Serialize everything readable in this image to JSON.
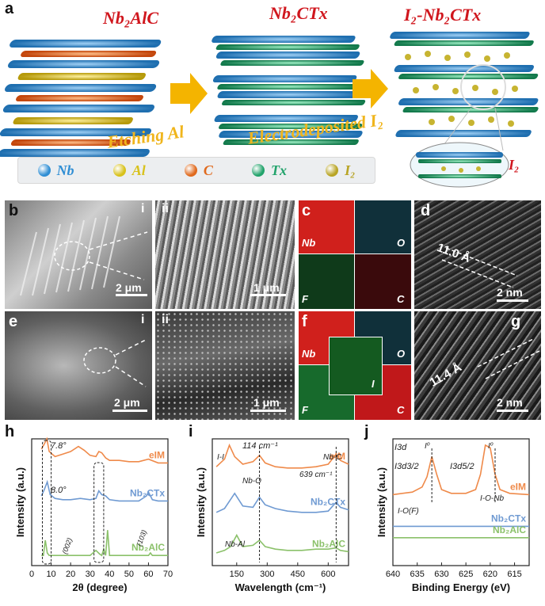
{
  "panel_a": {
    "label": "a",
    "title1": "Nb₂AlC",
    "title2": "Nb₂CTx",
    "title3": "I₂-Nb₂CTx",
    "step1": "Etching Al",
    "step2": "Electrodeposited I₂",
    "inset_label": "I₂",
    "legend": [
      {
        "name": "Nb",
        "color": "#2f8ed4"
      },
      {
        "name": "Al",
        "color": "#d8c21c"
      },
      {
        "name": "C",
        "color": "#e06a1e"
      },
      {
        "name": "Tx",
        "color": "#22a36b"
      },
      {
        "name": "I₂",
        "color": "#b8a424"
      }
    ]
  },
  "panel_b": {
    "label": "b",
    "sub1": "i",
    "sub2": "ii",
    "scale1": "2 μm",
    "scale2": "1 μm"
  },
  "panel_c": {
    "label": "c",
    "maps": [
      "Nb",
      "O",
      "F",
      "C"
    ]
  },
  "panel_d": {
    "label": "d",
    "spacing": "11.0 Å",
    "scale": "2 nm"
  },
  "panel_e": {
    "label": "e",
    "sub1": "i",
    "sub2": "ii",
    "scale1": "2 μm",
    "scale2": "1 μm"
  },
  "panel_f": {
    "label": "f",
    "maps": [
      "Nb",
      "O",
      "F",
      "C"
    ],
    "center": "I"
  },
  "panel_g": {
    "label": "g",
    "spacing": "11.4 Å",
    "scale": "2 nm"
  },
  "chart_data": [
    {
      "panel": "h",
      "type": "line",
      "xlabel": "2θ (degree)",
      "ylabel": "Intensity (a.u.)",
      "xlim": [
        0,
        70
      ],
      "xticks": [
        0,
        10,
        20,
        30,
        40,
        50,
        60,
        70
      ],
      "annotations": [
        "7.8°",
        "8.0°",
        "(002)",
        "(103)"
      ],
      "series": [
        {
          "name": "eIM",
          "color": "#ef8a4a",
          "x": [
            5,
            6.5,
            7.8,
            9,
            12,
            16,
            20,
            24,
            27,
            30,
            33,
            34.5,
            36,
            38,
            40,
            45,
            50,
            55,
            60,
            65,
            70
          ],
          "y": [
            0.92,
            0.96,
            1.0,
            0.9,
            0.86,
            0.88,
            0.9,
            0.94,
            0.91,
            0.87,
            0.86,
            0.9,
            0.89,
            0.85,
            0.83,
            0.83,
            0.82,
            0.82,
            0.84,
            0.81,
            0.81
          ]
        },
        {
          "name": "Nb₂CTx",
          "color": "#6f9ad2",
          "x": [
            5,
            6.5,
            8.0,
            9.5,
            12,
            16,
            20,
            25,
            30,
            33,
            34.5,
            36,
            38,
            40,
            45,
            50,
            55,
            59,
            60,
            62,
            65,
            70
          ],
          "y": [
            0.55,
            0.6,
            0.66,
            0.56,
            0.53,
            0.52,
            0.52,
            0.53,
            0.52,
            0.53,
            0.59,
            0.56,
            0.55,
            0.52,
            0.51,
            0.51,
            0.51,
            0.55,
            0.58,
            0.52,
            0.51,
            0.51
          ]
        },
        {
          "name": "Nb₂AlC",
          "color": "#8bc16a",
          "x": [
            5,
            6,
            7,
            8,
            9,
            12,
            20,
            30,
            33,
            35,
            36,
            37,
            38,
            39,
            40,
            45,
            50,
            55,
            60,
            61,
            62,
            65,
            70
          ],
          "y": [
            0.08,
            0.08,
            0.2,
            0.1,
            0.08,
            0.08,
            0.08,
            0.08,
            0.12,
            0.09,
            0.08,
            0.13,
            0.08,
            0.28,
            0.08,
            0.08,
            0.08,
            0.08,
            0.08,
            0.1,
            0.08,
            0.08,
            0.08
          ]
        }
      ]
    },
    {
      "panel": "i",
      "type": "line",
      "xlabel": "Wavelength (cm⁻¹)",
      "ylabel": "Intensity (a.u.)",
      "xlim": [
        30,
        700
      ],
      "xticks": [
        150,
        300,
        450,
        600
      ],
      "annotations": [
        "114 cm⁻¹",
        "I-I",
        "Nb-O",
        "Nb-C",
        "639 cm⁻¹",
        "Nb-Al"
      ],
      "series": [
        {
          "name": "eIM",
          "color": "#ef8a4a",
          "x": [
            50,
            90,
            114,
            140,
            180,
            230,
            262,
            290,
            340,
            400,
            470,
            540,
            600,
            639,
            660,
            700
          ],
          "y": [
            0.78,
            0.84,
            0.95,
            0.86,
            0.8,
            0.82,
            0.87,
            0.81,
            0.78,
            0.77,
            0.77,
            0.78,
            0.8,
            0.88,
            0.83,
            0.8
          ]
        },
        {
          "name": "Nb₂CTx",
          "color": "#6f9ad2",
          "x": [
            50,
            90,
            140,
            180,
            230,
            262,
            290,
            340,
            400,
            470,
            540,
            600,
            639,
            660,
            700
          ],
          "y": [
            0.42,
            0.45,
            0.57,
            0.47,
            0.46,
            0.54,
            0.48,
            0.45,
            0.43,
            0.42,
            0.42,
            0.43,
            0.5,
            0.46,
            0.44
          ]
        },
        {
          "name": "Nb₂AlC",
          "color": "#8bc16a",
          "x": [
            50,
            90,
            120,
            150,
            180,
            230,
            262,
            290,
            340,
            400,
            470,
            540,
            600,
            639,
            660,
            700
          ],
          "y": [
            0.1,
            0.12,
            0.15,
            0.24,
            0.15,
            0.16,
            0.2,
            0.15,
            0.13,
            0.12,
            0.12,
            0.13,
            0.13,
            0.14,
            0.12,
            0.11
          ]
        }
      ]
    },
    {
      "panel": "j",
      "type": "line",
      "xlabel": "Binding Energy (eV)",
      "ylabel": "Intensity (a.u.)",
      "xlim": [
        640,
        612
      ],
      "xticks": [
        640,
        635,
        630,
        625,
        620,
        615
      ],
      "annotations": [
        "I3d",
        "I⁰",
        "I3d3/2",
        "I3d5/2",
        "I⁰",
        "I-O(F)",
        "I-O-Nb"
      ],
      "series": [
        {
          "name": "eIM",
          "color": "#ef8a4a",
          "x": [
            640,
            636,
            634,
            633,
            632,
            631,
            630,
            628,
            625,
            623,
            622,
            621,
            620,
            619,
            618,
            616,
            612
          ],
          "y": [
            0.56,
            0.58,
            0.62,
            0.7,
            0.86,
            0.72,
            0.6,
            0.57,
            0.57,
            0.6,
            0.72,
            0.95,
            0.93,
            0.72,
            0.6,
            0.57,
            0.56
          ]
        },
        {
          "name": "Nb₂CTx",
          "color": "#6f9ad2",
          "x": [
            640,
            630,
            620,
            612
          ],
          "y": [
            0.31,
            0.31,
            0.31,
            0.31
          ]
        },
        {
          "name": "Nb₂AlC",
          "color": "#8bc16a",
          "x": [
            640,
            630,
            620,
            612
          ],
          "y": [
            0.22,
            0.22,
            0.22,
            0.22
          ]
        }
      ]
    }
  ]
}
